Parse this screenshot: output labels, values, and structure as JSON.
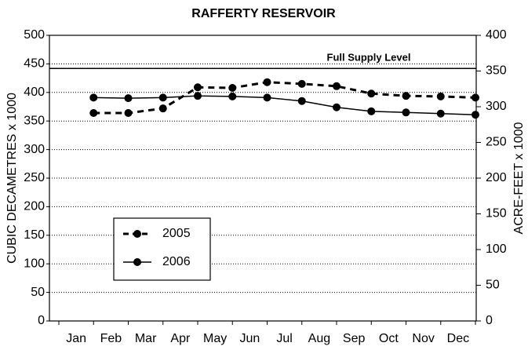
{
  "chart_data": {
    "type": "line",
    "title": "RAFFERTY RESERVOIR",
    "ylabel": "CUBIC DECAMETRES x 1000",
    "y2label": "ACRE-FEET x 1000",
    "categories": [
      "Jan",
      "Feb",
      "Mar",
      "Apr",
      "May",
      "Jun",
      "Jul",
      "Aug",
      "Sep",
      "Oct",
      "Nov",
      "Dec"
    ],
    "series": [
      {
        "name": "2005",
        "color": "#000000",
        "line_style": "dashed",
        "values": [
          364,
          364,
          372,
          409,
          408,
          418,
          415,
          411,
          398,
          394,
          393,
          391
        ]
      },
      {
        "name": "2006",
        "color": "#000000",
        "line_style": "solid",
        "values": [
          391,
          390,
          391,
          394,
          393,
          391,
          385,
          374,
          367,
          365,
          363,
          361
        ]
      }
    ],
    "annotations": [
      {
        "text": "Full Supply Level",
        "value": 442
      }
    ],
    "ylim": [
      0,
      500
    ],
    "yticks": [
      0,
      50,
      100,
      150,
      200,
      250,
      300,
      350,
      400,
      450,
      500
    ],
    "y2lim": [
      0,
      400
    ],
    "y2ticks": [
      0,
      50,
      100,
      150,
      200,
      250,
      300,
      350,
      400
    ],
    "grid": true,
    "legend": "lower left"
  }
}
